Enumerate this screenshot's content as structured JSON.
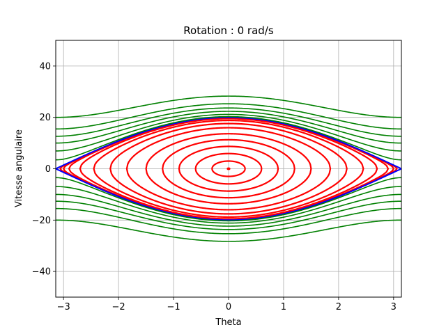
{
  "chart_data": {
    "type": "line",
    "title": "Rotation : 0 rad/s",
    "xlabel": "Theta",
    "ylabel": "Vitesse angulaire",
    "xlim": [
      -3.14159,
      3.14159
    ],
    "ylim": [
      -50,
      50
    ],
    "xticks": [
      -3,
      -2,
      -1,
      0,
      1,
      2,
      3
    ],
    "yticks": [
      -40,
      -20,
      0,
      20,
      40
    ],
    "xtick_labels": [
      "−3",
      "−2",
      "−1",
      "0",
      "1",
      "2",
      "3"
    ],
    "ytick_labels": [
      "−40",
      "−20",
      "0",
      "20",
      "40"
    ],
    "grid": true,
    "omega0": 10,
    "series": [
      {
        "kind": "closed-orbit",
        "color": "#ff0000",
        "amplitudes": [
          0.02,
          0.3,
          0.6,
          0.9,
          1.2,
          1.5,
          1.85,
          2.15,
          2.45,
          2.7,
          2.9,
          3.0,
          3.06
        ]
      },
      {
        "kind": "separatrix",
        "color": "#0000ff",
        "energy_ratio": 1.0
      },
      {
        "kind": "rotating-orbit",
        "color": "#008000",
        "energy_ratios": [
          1.03,
          1.12,
          1.25,
          1.4,
          1.6,
          2.0
        ]
      }
    ]
  }
}
